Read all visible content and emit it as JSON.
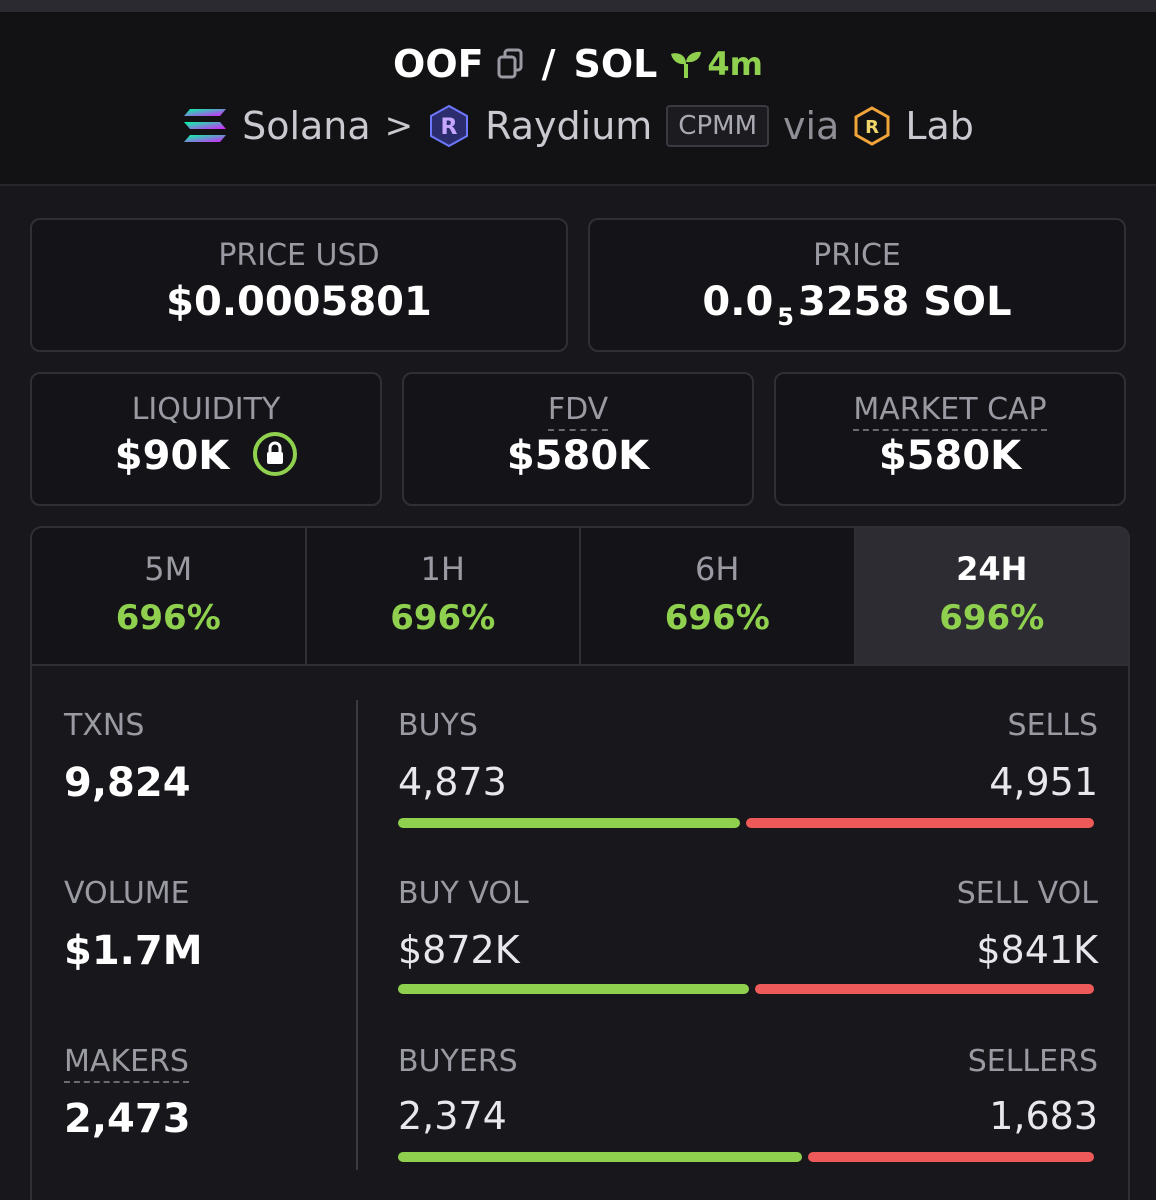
{
  "header": {
    "base": "OOF",
    "slash": "/",
    "quote": "SOL",
    "age": "4m",
    "chain": "Solana",
    "separator": ">",
    "dex": "Raydium",
    "pool_type": "CPMM",
    "via": "via",
    "launchpad": "Lab"
  },
  "price_usd": {
    "label": "PRICE USD",
    "value": "$0.0005801"
  },
  "price_native": {
    "label": "PRICE",
    "prefix": "0.0",
    "zeros": "5",
    "digits": "3258",
    "unit": "SOL"
  },
  "liquidity": {
    "label": "LIQUIDITY",
    "value": "$90K"
  },
  "fdv": {
    "label": "FDV",
    "value": "$580K"
  },
  "market_cap": {
    "label": "MARKET CAP",
    "value": "$580K"
  },
  "tabs": [
    {
      "label": "5M",
      "change": "696%"
    },
    {
      "label": "1H",
      "change": "696%"
    },
    {
      "label": "6H",
      "change": "696%"
    },
    {
      "label": "24H",
      "change": "696%"
    }
  ],
  "active_tab": "24H",
  "stats": {
    "txns": {
      "label": "TXNS",
      "value": "9,824"
    },
    "volume": {
      "label": "VOLUME",
      "value": "$1.7M"
    },
    "makers": {
      "label": "MAKERS",
      "value": "2,473"
    },
    "buys": {
      "label": "BUYS",
      "value": "4,873"
    },
    "sells": {
      "label": "SELLS",
      "value": "4,951"
    },
    "buy_vol": {
      "label": "BUY VOL",
      "value": "$872K"
    },
    "sell_vol": {
      "label": "SELL VOL",
      "value": "$841K"
    },
    "buyers": {
      "label": "BUYERS",
      "value": "2,374"
    },
    "sellers": {
      "label": "SELLERS",
      "value": "1,683"
    }
  },
  "colors": {
    "positive": "#8fd14f",
    "negative": "#ee5a5a",
    "background": "#18181c"
  },
  "icons": [
    "copy-icon",
    "seedling-icon",
    "solana-logo-icon",
    "raydium-logo-icon",
    "lab-logo-icon",
    "lock-icon"
  ]
}
